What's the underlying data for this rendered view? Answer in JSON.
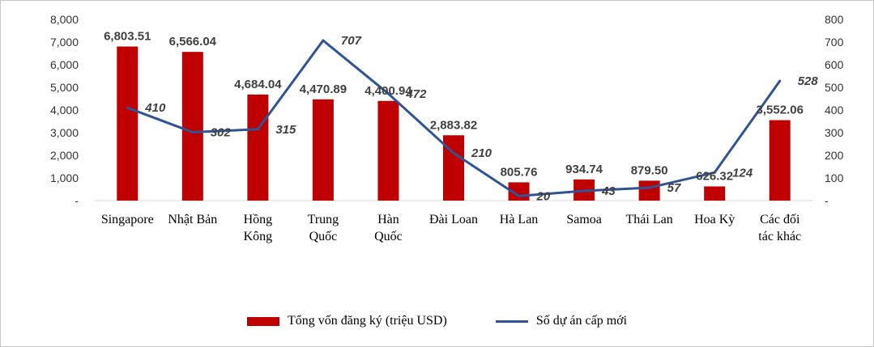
{
  "chart_data": {
    "type": "bar",
    "categories": [
      [
        "Singapore"
      ],
      [
        "Nhật Bản"
      ],
      [
        "Hồng",
        "Kông"
      ],
      [
        "Trung",
        "Quốc"
      ],
      [
        "Hàn",
        "Quốc"
      ],
      [
        "Đài Loan"
      ],
      [
        "Hà Lan"
      ],
      [
        "Samoa"
      ],
      [
        "Thái Lan"
      ],
      [
        "Hoa Kỳ"
      ],
      [
        "Các đối",
        "tác khác"
      ]
    ],
    "series": [
      {
        "name": "Tổng vốn đăng ký (triệu USD)",
        "type": "bar",
        "axis": "left",
        "color": "#c00000",
        "values": [
          6803.51,
          6566.04,
          4684.04,
          4470.89,
          4400.94,
          2883.82,
          805.76,
          934.74,
          879.5,
          626.32,
          3552.06
        ],
        "labels": [
          "6,803.51",
          "6,566.04",
          "4,684.04",
          "4,470.89",
          "4,400.94",
          "2,883.82",
          "805.76",
          "934.74",
          "879.50",
          "626.32",
          "3,552.06"
        ]
      },
      {
        "name": "Số dự án cấp mới",
        "type": "line",
        "axis": "right",
        "color": "#2f5496",
        "values": [
          410,
          302,
          315,
          707,
          472,
          210,
          20,
          43,
          57,
          124,
          528
        ],
        "labels": [
          "410",
          "302",
          "315",
          "707",
          "472",
          "210",
          "20",
          "43",
          "57",
          "124",
          "528"
        ]
      }
    ],
    "left_axis": {
      "ylim": [
        0,
        8000
      ],
      "ticks": [
        "-",
        "1,000",
        "2,000",
        "3,000",
        "4,000",
        "5,000",
        "6,000",
        "7,000",
        "8,000"
      ]
    },
    "right_axis": {
      "ylim": [
        0,
        800
      ],
      "ticks": [
        "-",
        "100",
        "200",
        "300",
        "400",
        "500",
        "600",
        "700",
        "800"
      ]
    },
    "grid": false,
    "legend_position": "bottom"
  }
}
